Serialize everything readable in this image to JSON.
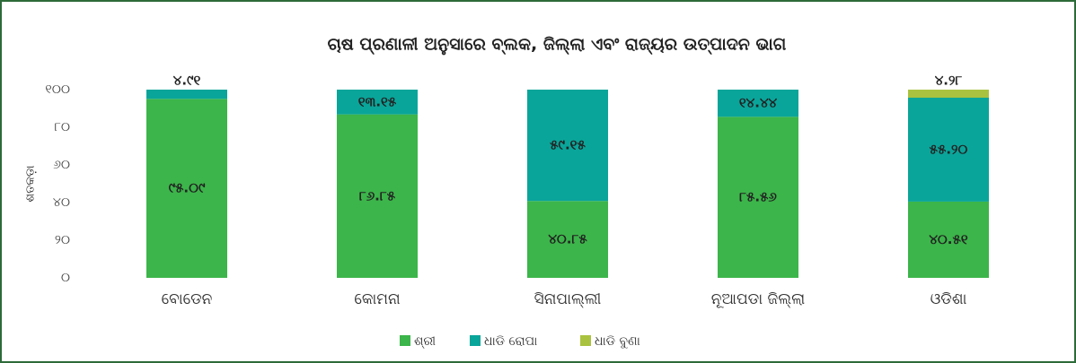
{
  "chart_data": {
    "type": "stacked_bar",
    "title": "ଚାଷ ପ୍ରଣାଳୀ ଅନୁସାରେ ବ୍ଲକ, ଜିଲ୍ଲା ଏବଂ ରାଜ୍ୟର ଉତ୍ପାଦନ ଭାଗ",
    "y_label": "ଶତକଡ଼ା",
    "categories": [
      "ବୋଡେନ",
      "କୋମନା",
      "ସିନାପାଲ୍ଲୀ",
      "ନୂଆପଡା ଜିଲ୍ଲା",
      "ଓଡିଶା"
    ],
    "series": [
      {
        "name": "ଶ୍ରୀ",
        "color": "#3cb54a",
        "values": [
          95.09,
          86.85,
          40.85,
          85.56,
          40.51
        ],
        "value_labels": [
          "୯୫.୦୯",
          "୮୬.୮୫",
          "୪୦.୮୫",
          "୮୫.୫୬",
          "୪୦.୫୧"
        ]
      },
      {
        "name": "ଧାଡି ରୋପା",
        "color": "#0aa59a",
        "values": [
          4.91,
          13.15,
          59.15,
          14.44,
          55.2
        ],
        "value_labels": [
          "୪.୯୧",
          "୧୩.୧୫",
          "୫୯.୧୫",
          "୧୪.୪୪",
          "୫୫.୨୦"
        ]
      },
      {
        "name": "ଧାଡି ବୁଣା",
        "color": "#a9c23f",
        "values": [
          0,
          0,
          0,
          0,
          4.28
        ],
        "value_labels": [
          null,
          null,
          null,
          null,
          "୪.୨୮"
        ]
      }
    ],
    "ylim": [
      0,
      100
    ],
    "yticks": [
      {
        "value": 0,
        "label": "୦"
      },
      {
        "value": 20,
        "label": "୨୦"
      },
      {
        "value": 40,
        "label": "୪୦"
      },
      {
        "value": 60,
        "label": "୬୦"
      },
      {
        "value": 80,
        "label": "୮୦"
      },
      {
        "value": 100,
        "label": "୧୦୦"
      }
    ],
    "grid": false,
    "legend": "bottom"
  }
}
